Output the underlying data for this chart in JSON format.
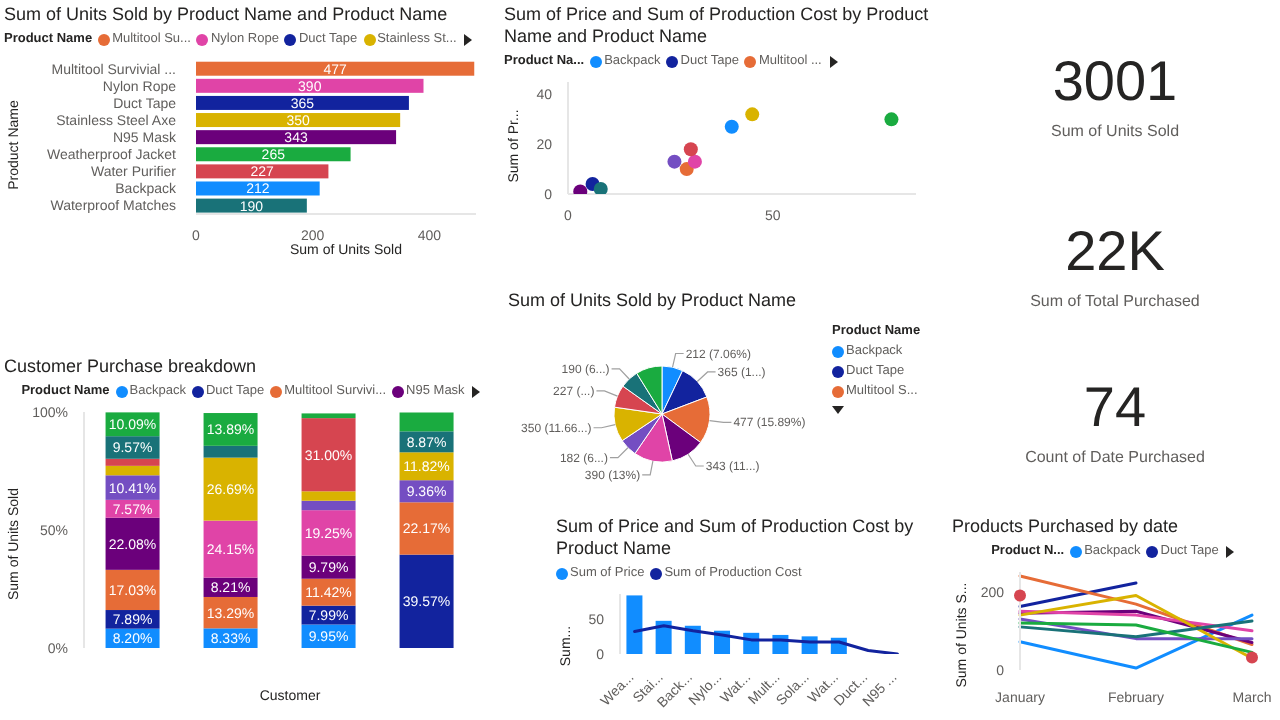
{
  "chart_data": [
    {
      "type": "bar",
      "title": "Sum of Units Sold by Product Name and Product Name",
      "orientation": "horizontal",
      "stacked": true,
      "data_labels": true,
      "legend": "top left",
      "legend_title": "Product Name",
      "xlabel": "Sum of Units Sold",
      "ylabel": "Product Name",
      "xlim": [
        0,
        480
      ],
      "xticks": [
        0,
        200,
        400
      ],
      "categories": [
        "Multitool Survivial ...",
        "Nylon Rope",
        "Duct Tape",
        "Stainless Steel Axe",
        "N95 Mask",
        "Weatherproof Jacket",
        "Water Purifier",
        "Backpack",
        "Waterproof Matches"
      ],
      "series": [
        {
          "name": "Multitool Su...",
          "color": "#e66c37",
          "values": [
            477,
            null,
            null,
            null,
            null,
            null,
            null,
            null,
            null
          ]
        },
        {
          "name": "Nylon Rope",
          "color": "#e044a7",
          "values": [
            null,
            390,
            null,
            null,
            null,
            null,
            null,
            null,
            null
          ]
        },
        {
          "name": "Duct Tape",
          "color": "#12239e",
          "values": [
            null,
            null,
            365,
            null,
            null,
            null,
            null,
            null,
            null
          ]
        },
        {
          "name": "Stainless St...",
          "color": "#d9b300",
          "values": [
            null,
            null,
            null,
            350,
            null,
            null,
            null,
            null,
            null
          ]
        },
        {
          "color": "#6b007b",
          "values": [
            null,
            null,
            null,
            null,
            343,
            null,
            null,
            null,
            null
          ]
        },
        {
          "color": "#1aab40",
          "values": [
            null,
            null,
            null,
            null,
            null,
            265,
            null,
            null,
            null
          ]
        },
        {
          "color": "#d64550",
          "values": [
            null,
            null,
            null,
            null,
            null,
            null,
            227,
            null,
            null
          ]
        },
        {
          "color": "#118dff",
          "values": [
            null,
            null,
            null,
            null,
            null,
            null,
            null,
            212,
            null
          ]
        },
        {
          "color": "#197278",
          "values": [
            null,
            null,
            null,
            null,
            null,
            null,
            null,
            null,
            190
          ]
        }
      ]
    },
    {
      "type": "scatter",
      "title": "Sum of Price and Sum of Production Cost by Product Name and Product Name",
      "legend": "top left",
      "legend_title": "Product Na...",
      "ylabel": "Sum of Pr...",
      "xlim": [
        0,
        85
      ],
      "xticks": [
        0,
        50
      ],
      "ylim": [
        0,
        45
      ],
      "yticks": [
        0,
        20,
        40
      ],
      "series": [
        {
          "name": "Backpack",
          "color": "#118dff",
          "x": [
            40
          ],
          "values": [
            27
          ]
        },
        {
          "name": "Duct Tape",
          "color": "#12239e",
          "x": [
            6
          ],
          "values": [
            4
          ]
        },
        {
          "name": "Multitool ...",
          "color": "#e66c37",
          "x": [
            29
          ],
          "values": [
            10
          ]
        },
        {
          "color": "#6b007b",
          "x": [
            3
          ],
          "values": [
            1
          ]
        },
        {
          "color": "#e044a7",
          "x": [
            31
          ],
          "values": [
            13
          ]
        },
        {
          "color": "#744ec2",
          "x": [
            26
          ],
          "values": [
            13
          ]
        },
        {
          "color": "#d9b300",
          "x": [
            45
          ],
          "values": [
            32
          ]
        },
        {
          "color": "#d64550",
          "x": [
            30
          ],
          "values": [
            18
          ]
        },
        {
          "color": "#197278",
          "x": [
            8
          ],
          "values": [
            2
          ]
        },
        {
          "color": "#1aab40",
          "x": [
            79
          ],
          "values": [
            30
          ]
        }
      ]
    },
    {
      "type": "other",
      "categories": [
        "Sum of Units Sold"
      ],
      "values": [
        3001
      ],
      "value_labels": [
        "3001"
      ]
    },
    {
      "type": "other",
      "categories": [
        "Sum of Total Purchased"
      ],
      "values": [
        22000
      ],
      "value_labels": [
        "22K"
      ]
    },
    {
      "type": "bar",
      "title": "Customer Purchase breakdown",
      "stacked": true,
      "legend": "top",
      "legend_title": "Product Name",
      "xlabel": "Customer",
      "ylabel": "Sum of Units Sold",
      "ylim": [
        0,
        100
      ],
      "yticks": [
        {
          "value": 0,
          "label": "0%"
        },
        {
          "value": 50,
          "label": "50%"
        },
        {
          "value": 100,
          "label": "100%"
        }
      ],
      "categories": [
        null,
        null,
        null,
        null
      ],
      "series": [
        {
          "name": "Backpack",
          "color": "#118dff",
          "values": [
            8.2,
            8.33,
            9.95,
            null
          ],
          "value_labels": [
            "8.20%",
            "8.33%",
            "9.95%",
            null
          ]
        },
        {
          "name": "Duct Tape",
          "color": "#12239e",
          "values": [
            7.89,
            null,
            7.99,
            39.57
          ],
          "value_labels": [
            "7.89%",
            null,
            "7.99%",
            "39.57%"
          ]
        },
        {
          "name": "Multitool Survivi...",
          "color": "#e66c37",
          "values": [
            17.03,
            13.29,
            11.42,
            22.17
          ],
          "value_labels": [
            "17.03%",
            "13.29%",
            "11.42%",
            "22.17%"
          ]
        },
        {
          "name": "N95 Mask",
          "color": "#6b007b",
          "values": [
            22.08,
            8.21,
            9.79,
            null
          ],
          "value_labels": [
            "22.08%",
            "8.21%",
            "9.79%",
            null
          ]
        },
        {
          "color": "#e044a7",
          "values": [
            7.57,
            24.15,
            19.25,
            null
          ],
          "value_labels": [
            "7.57%",
            "24.15%",
            "19.25%",
            null
          ]
        },
        {
          "color": "#744ec2",
          "values": [
            10.41,
            null,
            4,
            9.36
          ],
          "value_labels": [
            "10.41%",
            null,
            null,
            "9.36%"
          ]
        },
        {
          "color": "#d9b300",
          "values": [
            4,
            26.69,
            4,
            11.82
          ],
          "value_labels": [
            null,
            "26.69%",
            null,
            "11.82%"
          ]
        },
        {
          "color": "#d64550",
          "values": [
            3,
            null,
            31.0,
            null
          ],
          "value_labels": [
            null,
            null,
            "31.00%",
            null
          ]
        },
        {
          "color": "#197278",
          "values": [
            9.57,
            5,
            null,
            8.87
          ],
          "value_labels": [
            "9.57%",
            null,
            null,
            "8.87%"
          ]
        },
        {
          "color": "#1aab40",
          "values": [
            10.09,
            13.89,
            2,
            8
          ],
          "value_labels": [
            "10.09%",
            "13.89%",
            null,
            null
          ]
        }
      ]
    },
    {
      "type": "pie",
      "title": "Sum of Units Sold by Product Name",
      "legend": "right",
      "legend_title": "Product Name",
      "categories": [
        "Backpack",
        "Duct Tape",
        "Multitool S...",
        null,
        null,
        null,
        null,
        null,
        null,
        null
      ],
      "values": [
        212,
        365,
        477,
        343,
        390,
        182,
        350,
        227,
        190,
        265
      ],
      "colors": [
        "#118dff",
        "#12239e",
        "#e66c37",
        "#6b007b",
        "#e044a7",
        "#744ec2",
        "#d9b300",
        "#d64550",
        "#197278",
        "#1aab40"
      ],
      "value_labels": [
        "212 (7.06%)",
        "365 (1...)",
        "477 (15.89%)",
        "343 (11...)",
        "390 (13%)",
        "182 (6...)",
        "350 (11.66...)",
        "227 (...)",
        "190 (6...)",
        null
      ]
    },
    {
      "type": "other",
      "categories": [
        "Count of Date Purchased"
      ],
      "values": [
        74
      ],
      "value_labels": [
        "74"
      ]
    },
    {
      "type": "bar",
      "title": "Sum of Price and Sum of Production Cost by Product Name",
      "legend": "top left",
      "ylabel": "Sum...",
      "ylim": [
        0,
        85
      ],
      "yticks": [
        0,
        50
      ],
      "categories": [
        "Wea...",
        "Stai...",
        "Back...",
        "Nylo...",
        "Wat...",
        "Mult...",
        "Sola...",
        "Wat...",
        "Duct...",
        "N95 ..."
      ],
      "series": [
        {
          "name": "Sum of Price",
          "type": "bar",
          "color": "#118dff",
          "values": [
            83,
            47,
            40,
            33,
            30,
            27,
            25,
            23,
            null,
            null
          ]
        },
        {
          "name": "Sum of Production Cost",
          "type": "line",
          "color": "#12239e",
          "values": [
            32,
            40,
            33,
            27,
            20,
            20,
            17,
            17,
            5,
            0
          ]
        }
      ]
    },
    {
      "type": "line",
      "title": "Products Purchased by date",
      "legend": "top",
      "legend_title": "Product N...",
      "ylabel": "Sum of Units S...",
      "ylim": [
        0,
        250
      ],
      "yticks": [
        0,
        200
      ],
      "categories": [
        "January",
        "February",
        "March"
      ],
      "series": [
        {
          "name": "Backpack",
          "color": "#118dff",
          "values": [
            72,
            5,
            140
          ]
        },
        {
          "name": "Duct Tape",
          "color": "#12239e",
          "values": [
            162,
            222,
            null
          ]
        },
        {
          "color": "#e66c37",
          "values": [
            240,
            168,
            65
          ]
        },
        {
          "color": "#6b007b",
          "values": [
            145,
            150,
            70
          ]
        },
        {
          "color": "#e044a7",
          "values": [
            150,
            140,
            100
          ]
        },
        {
          "color": "#744ec2",
          "values": [
            130,
            80,
            80
          ]
        },
        {
          "color": "#d9b300",
          "values": [
            140,
            190,
            30
          ]
        },
        {
          "color": "#197278",
          "values": [
            110,
            85,
            125
          ]
        },
        {
          "color": "#1aab40",
          "values": [
            120,
            115,
            45
          ]
        },
        {
          "type": "scatter",
          "color": "#d64550",
          "x": [
            "January",
            "March"
          ],
          "values": [
            190,
            32
          ]
        }
      ]
    }
  ]
}
